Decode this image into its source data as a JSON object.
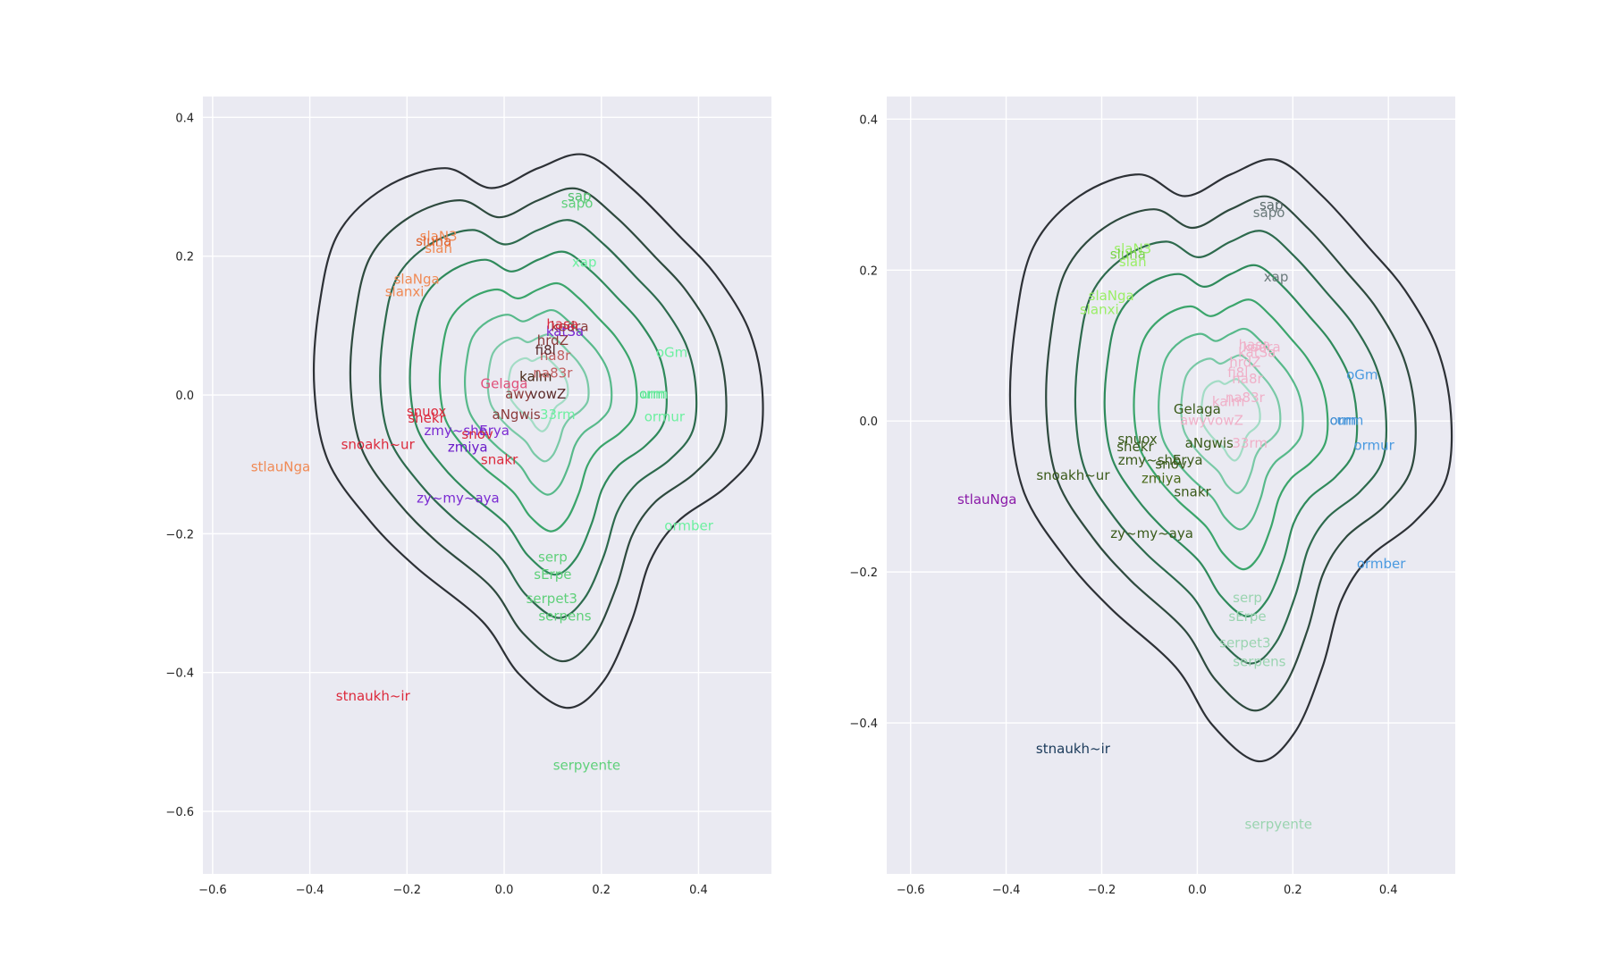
{
  "chart_data": [
    {
      "type": "scatter",
      "panel": "left",
      "title": "",
      "xlabel": "",
      "ylabel": "",
      "xlim": [
        -0.62,
        0.55
      ],
      "ylim": [
        -0.69,
        0.43
      ],
      "xticks": [
        -0.6,
        -0.4,
        -0.2,
        0.0,
        0.2,
        0.4
      ],
      "yticks": [
        -0.6,
        -0.4,
        -0.2,
        0.0,
        0.2,
        0.4
      ],
      "grid": true,
      "background": "#eaeaf2",
      "overlay": "kde-density-contours",
      "points": [
        {
          "label": "stlauNga",
          "x": -0.46,
          "y": -0.11,
          "color": "#f08a55"
        },
        {
          "label": "stnaukh~ir",
          "x": -0.27,
          "y": -0.44,
          "color": "#dc2a3c"
        },
        {
          "label": "serpyente",
          "x": 0.17,
          "y": -0.54,
          "color": "#5fd07a"
        },
        {
          "label": "ormber",
          "x": 0.38,
          "y": -0.195,
          "color": "#6cf0a0"
        },
        {
          "label": "serpens",
          "x": 0.125,
          "y": -0.325,
          "color": "#5fd07a"
        },
        {
          "label": "serpet3",
          "x": 0.098,
          "y": -0.3,
          "color": "#5fd07a"
        },
        {
          "label": "sErpe",
          "x": 0.1,
          "y": -0.265,
          "color": "#5fd07a"
        },
        {
          "label": "serp",
          "x": 0.1,
          "y": -0.24,
          "color": "#5fd07a"
        },
        {
          "label": "zy~my~aya",
          "x": -0.095,
          "y": -0.155,
          "color": "#7a2ad2"
        },
        {
          "label": "snakr",
          "x": -0.01,
          "y": -0.1,
          "color": "#dc2a3c"
        },
        {
          "label": "zmiya",
          "x": -0.075,
          "y": -0.082,
          "color": "#6a1ac8"
        },
        {
          "label": "snoakh~ur",
          "x": -0.26,
          "y": -0.078,
          "color": "#dc2a3c"
        },
        {
          "label": "zmy~sho",
          "x": -0.1,
          "y": -0.058,
          "color": "#7a2ad2"
        },
        {
          "label": "Erya",
          "x": -0.02,
          "y": -0.058,
          "color": "#7a2ad2"
        },
        {
          "label": "snov",
          "x": -0.055,
          "y": -0.063,
          "color": "#dc2a3c"
        },
        {
          "label": "shekr",
          "x": -0.16,
          "y": -0.04,
          "color": "#dc2a3c"
        },
        {
          "label": "snuox",
          "x": -0.16,
          "y": -0.03,
          "color": "#dc2a3c"
        },
        {
          "label": "aNgwis",
          "x": 0.025,
          "y": -0.035,
          "color": "#8b3a3a"
        },
        {
          "label": "33rm",
          "x": 0.11,
          "y": -0.035,
          "color": "#6cf0a0"
        },
        {
          "label": "ormur",
          "x": 0.33,
          "y": -0.038,
          "color": "#6cf0a0"
        },
        {
          "label": "orm",
          "x": 0.305,
          "y": -0.005,
          "color": "#4fe08a"
        },
        {
          "label": "urm",
          "x": 0.31,
          "y": -0.005,
          "color": "#6cf0a0"
        },
        {
          "label": "oGm",
          "x": 0.345,
          "y": 0.055,
          "color": "#6cf0a0"
        },
        {
          "label": "awy",
          "x": 0.03,
          "y": -0.005,
          "color": "#8b3a3a"
        },
        {
          "label": "vowZ",
          "x": 0.09,
          "y": -0.005,
          "color": "#5a2a2a"
        },
        {
          "label": "Gelaga",
          "x": 0.0,
          "y": 0.01,
          "color": "#e0507a"
        },
        {
          "label": "kalm",
          "x": 0.065,
          "y": 0.02,
          "color": "#4a2a1a"
        },
        {
          "label": "na83r",
          "x": 0.1,
          "y": 0.025,
          "color": "#c06060"
        },
        {
          "label": "na8r",
          "x": 0.105,
          "y": 0.05,
          "color": "#c06060"
        },
        {
          "label": "fi8l",
          "x": 0.085,
          "y": 0.058,
          "color": "#5a2a2a"
        },
        {
          "label": "hrdZ",
          "x": 0.1,
          "y": 0.072,
          "color": "#8b3a3a"
        },
        {
          "label": "katSa",
          "x": 0.125,
          "y": 0.085,
          "color": "#7a2ad2"
        },
        {
          "label": "kedra",
          "x": 0.135,
          "y": 0.092,
          "color": "#8b3a3a"
        },
        {
          "label": "hasa",
          "x": 0.12,
          "y": 0.095,
          "color": "#dc2a3c"
        },
        {
          "label": "xap",
          "x": 0.165,
          "y": 0.185,
          "color": "#6cf0a0"
        },
        {
          "label": "sapo",
          "x": 0.15,
          "y": 0.27,
          "color": "#5fd07a"
        },
        {
          "label": "sap",
          "x": 0.155,
          "y": 0.28,
          "color": "#4fc06a"
        },
        {
          "label": "slaNga",
          "x": -0.18,
          "y": 0.16,
          "color": "#f08a55"
        },
        {
          "label": "slanxi",
          "x": -0.205,
          "y": 0.142,
          "color": "#f08a55"
        },
        {
          "label": "slaN3",
          "x": -0.135,
          "y": 0.222,
          "color": "#f08a55"
        },
        {
          "label": "sluha",
          "x": -0.145,
          "y": 0.215,
          "color": "#e0602a"
        },
        {
          "label": "slan",
          "x": -0.135,
          "y": 0.205,
          "color": "#f08a55"
        }
      ]
    },
    {
      "type": "scatter",
      "panel": "right",
      "title": "",
      "xlabel": "",
      "ylabel": "",
      "xlim": [
        -0.65,
        0.54
      ],
      "ylim": [
        -0.6,
        0.43
      ],
      "xticks": [
        -0.6,
        -0.4,
        -0.2,
        0.0,
        0.2,
        0.4
      ],
      "yticks": [
        -0.4,
        -0.2,
        0.0,
        0.2,
        0.4
      ],
      "grid": true,
      "background": "#eaeaf2",
      "overlay": "kde-density-contours",
      "points": [
        {
          "label": "stlauNga",
          "x": -0.44,
          "y": -0.11,
          "color": "#8a1aa8"
        },
        {
          "label": "stnaukh~ir",
          "x": -0.26,
          "y": -0.44,
          "color": "#1a3a5a"
        },
        {
          "label": "serpyente",
          "x": 0.17,
          "y": -0.54,
          "color": "#9ad4b0"
        },
        {
          "label": "ormber",
          "x": 0.385,
          "y": -0.195,
          "color": "#4a9ae0"
        },
        {
          "label": "serpens",
          "x": 0.13,
          "y": -0.325,
          "color": "#9ad4b0"
        },
        {
          "label": "serpet3",
          "x": 0.1,
          "y": -0.3,
          "color": "#9ad4b0"
        },
        {
          "label": "sErpe",
          "x": 0.105,
          "y": -0.265,
          "color": "#9ad4b0"
        },
        {
          "label": "serp",
          "x": 0.105,
          "y": -0.24,
          "color": "#9ad4b0"
        },
        {
          "label": "zy~my~aya",
          "x": -0.095,
          "y": -0.155,
          "color": "#3a5a1a"
        },
        {
          "label": "snakr",
          "x": -0.01,
          "y": -0.1,
          "color": "#3a5a1a"
        },
        {
          "label": "zmiya",
          "x": -0.075,
          "y": -0.082,
          "color": "#4a6a1a"
        },
        {
          "label": "snoakh~ur",
          "x": -0.26,
          "y": -0.078,
          "color": "#3a5a1a"
        },
        {
          "label": "zmy~sho",
          "x": -0.1,
          "y": -0.058,
          "color": "#3a5a1a"
        },
        {
          "label": "Erya",
          "x": -0.02,
          "y": -0.058,
          "color": "#3a5a1a"
        },
        {
          "label": "snov",
          "x": -0.055,
          "y": -0.063,
          "color": "#3a5a1a"
        },
        {
          "label": "shekr",
          "x": -0.13,
          "y": -0.04,
          "color": "#3a5a1a"
        },
        {
          "label": "snuox",
          "x": -0.125,
          "y": -0.03,
          "color": "#3a5a1a"
        },
        {
          "label": "aNgwis",
          "x": 0.025,
          "y": -0.035,
          "color": "#3a5a1a"
        },
        {
          "label": "33rm",
          "x": 0.11,
          "y": -0.035,
          "color": "#f0b0c8"
        },
        {
          "label": "ormur",
          "x": 0.37,
          "y": -0.038,
          "color": "#4a9ae0"
        },
        {
          "label": "orm",
          "x": 0.305,
          "y": -0.005,
          "color": "#3a8ad0"
        },
        {
          "label": "urm",
          "x": 0.32,
          "y": -0.005,
          "color": "#4a9ae0"
        },
        {
          "label": "oGm",
          "x": 0.345,
          "y": 0.055,
          "color": "#4a9ae0"
        },
        {
          "label": "awyvowZ",
          "x": 0.03,
          "y": -0.005,
          "color": "#f0b0c8"
        },
        {
          "label": "Gelaga",
          "x": 0.0,
          "y": 0.01,
          "color": "#3a5a1a"
        },
        {
          "label": "kalm",
          "x": 0.065,
          "y": 0.02,
          "color": "#f0b0c8"
        },
        {
          "label": "na83r",
          "x": 0.1,
          "y": 0.025,
          "color": "#f0b0c8"
        },
        {
          "label": "na8r",
          "x": 0.105,
          "y": 0.05,
          "color": "#f0b0c8"
        },
        {
          "label": "fi8l",
          "x": 0.085,
          "y": 0.058,
          "color": "#f0b0c8"
        },
        {
          "label": "hrdZ",
          "x": 0.1,
          "y": 0.072,
          "color": "#f0b0c8"
        },
        {
          "label": "katSa",
          "x": 0.125,
          "y": 0.085,
          "color": "#f0b0c8"
        },
        {
          "label": "kedra",
          "x": 0.135,
          "y": 0.092,
          "color": "#f0b0c8"
        },
        {
          "label": "hasa",
          "x": 0.12,
          "y": 0.095,
          "color": "#f0b0c8"
        },
        {
          "label": "xap",
          "x": 0.165,
          "y": 0.185,
          "color": "#6a7a7a"
        },
        {
          "label": "sapo",
          "x": 0.15,
          "y": 0.27,
          "color": "#6a7a7a"
        },
        {
          "label": "sap",
          "x": 0.155,
          "y": 0.28,
          "color": "#5a6a6a"
        },
        {
          "label": "slaNga",
          "x": -0.18,
          "y": 0.16,
          "color": "#9aee66"
        },
        {
          "label": "slanxi",
          "x": -0.205,
          "y": 0.142,
          "color": "#9aee66"
        },
        {
          "label": "slaN3",
          "x": -0.135,
          "y": 0.222,
          "color": "#9aee66"
        },
        {
          "label": "sluha",
          "x": -0.145,
          "y": 0.215,
          "color": "#7ad44a"
        },
        {
          "label": "slan",
          "x": -0.135,
          "y": 0.205,
          "color": "#9aee66"
        }
      ]
    }
  ]
}
